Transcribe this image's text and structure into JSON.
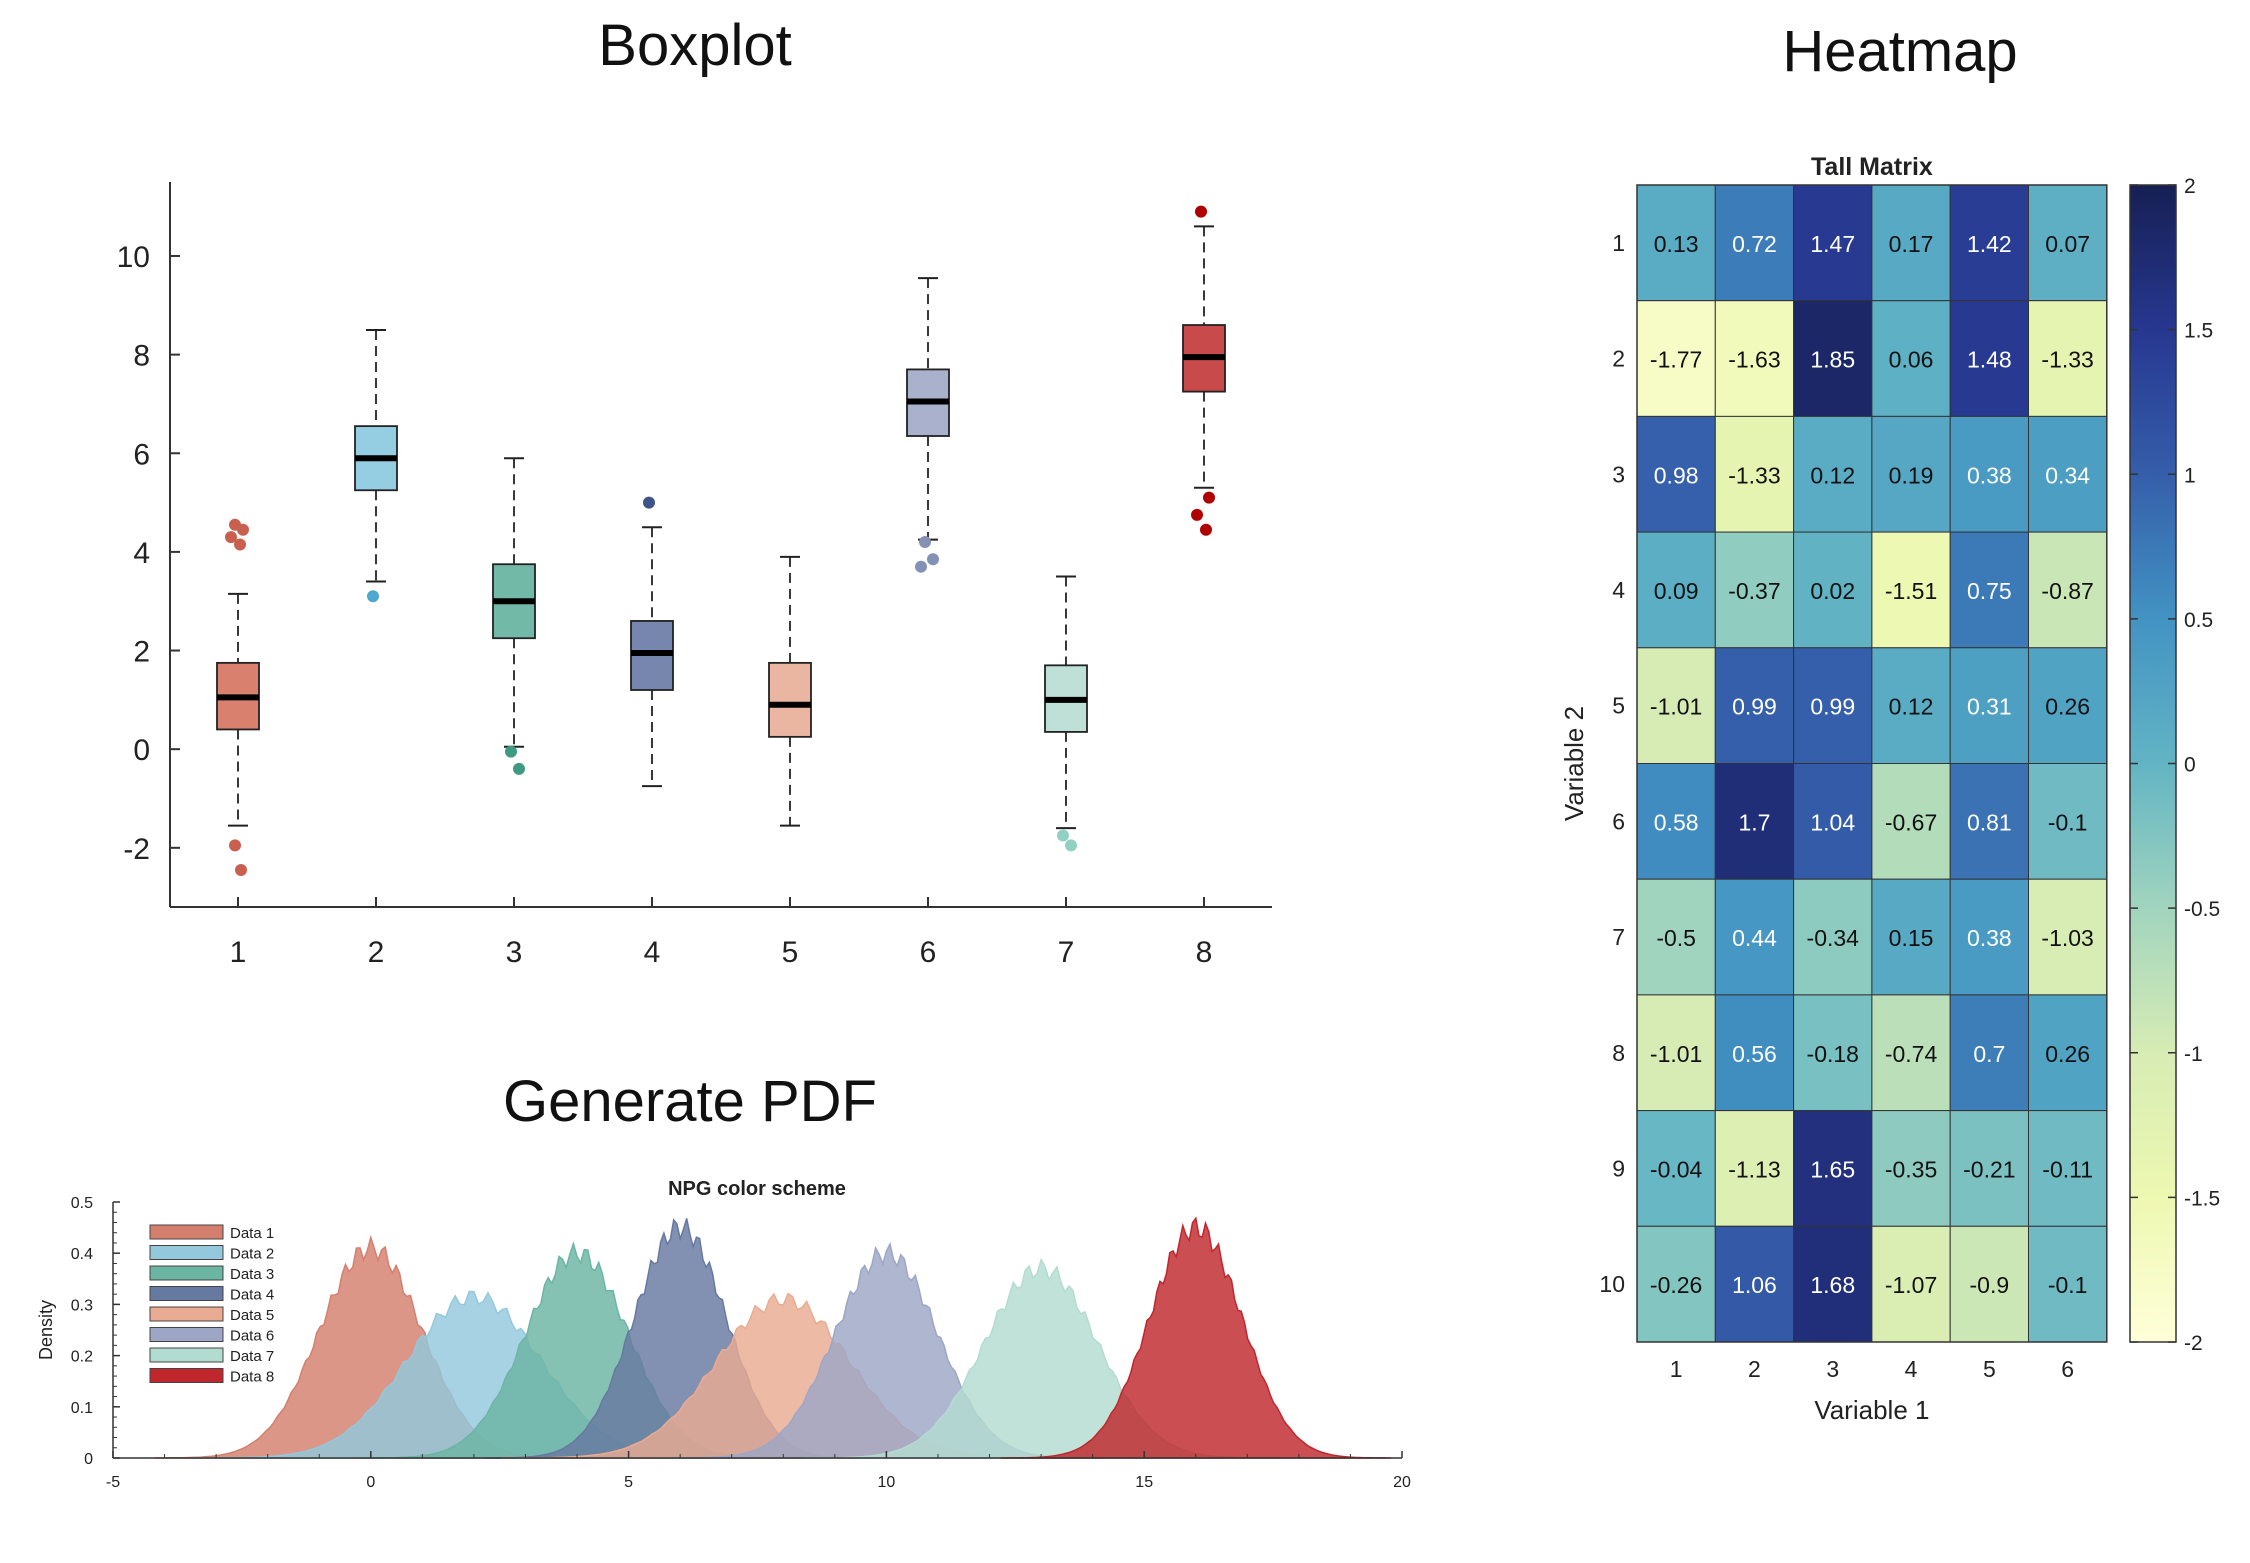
{
  "titles": {
    "boxplot": "Boxplot",
    "heatmap": "Heatmap",
    "pdf": "Generate PDF"
  },
  "chart_data": [
    {
      "type": "boxplot",
      "title": "",
      "xlabel": "",
      "ylabel": "",
      "categories": [
        "1",
        "2",
        "3",
        "4",
        "5",
        "6",
        "7",
        "8"
      ],
      "ylim": [
        -3.2,
        11.5
      ],
      "yticks": [
        -2,
        0,
        2,
        4,
        6,
        8,
        10
      ],
      "boxes": [
        {
          "q1": 0.4,
          "median": 1.05,
          "q3": 1.75,
          "wlow": -1.55,
          "whigh": 3.15,
          "outliers": [
            4.55,
            4.45,
            4.3,
            4.15,
            -1.95,
            -2.45
          ],
          "color": "#c9604f",
          "fill": "#d9806f"
        },
        {
          "q1": 5.25,
          "median": 5.9,
          "q3": 6.55,
          "wlow": 3.4,
          "whigh": 8.5,
          "outliers": [
            3.1
          ],
          "color": "#4da8cf",
          "fill": "#95cde2"
        },
        {
          "q1": 2.25,
          "median": 3.0,
          "q3": 3.75,
          "wlow": 0.05,
          "whigh": 5.9,
          "outliers": [
            -0.05,
            -0.4
          ],
          "color": "#3e9b81",
          "fill": "#72b9a7"
        },
        {
          "q1": 1.2,
          "median": 1.95,
          "q3": 2.6,
          "wlow": -0.75,
          "whigh": 4.5,
          "outliers": [
            5.0
          ],
          "color": "#3c5488",
          "fill": "#7686ae"
        },
        {
          "q1": 0.25,
          "median": 0.9,
          "q3": 1.75,
          "wlow": -1.55,
          "whigh": 3.9,
          "outliers": [],
          "color": "#e0937a",
          "fill": "#eab6a1"
        },
        {
          "q1": 6.35,
          "median": 7.05,
          "q3": 7.7,
          "wlow": 4.25,
          "whigh": 9.55,
          "outliers": [
            4.2,
            3.85,
            3.7
          ],
          "color": "#8491b4",
          "fill": "#a9b1cd"
        },
        {
          "q1": 0.35,
          "median": 1.0,
          "q3": 1.7,
          "wlow": -1.6,
          "whigh": 3.5,
          "outliers": [
            -1.75,
            -1.95
          ],
          "color": "#91d1c2",
          "fill": "#bfe0d7"
        },
        {
          "q1": 7.25,
          "median": 7.95,
          "q3": 8.6,
          "wlow": 5.3,
          "whigh": 10.6,
          "outliers": [
            10.9,
            5.1,
            4.75,
            4.45
          ],
          "color": "#b00000",
          "fill": "#c94a4a"
        }
      ]
    },
    {
      "type": "heatmap",
      "title": "Tall Matrix",
      "xlabel": "Variable 1",
      "ylabel": "Variable 2",
      "x": [
        "1",
        "2",
        "3",
        "4",
        "5",
        "6"
      ],
      "y": [
        "1",
        "2",
        "3",
        "4",
        "5",
        "6",
        "7",
        "8",
        "9",
        "10"
      ],
      "values": [
        [
          0.13,
          0.72,
          1.47,
          0.17,
          1.42,
          0.07
        ],
        [
          -1.77,
          -1.63,
          1.85,
          0.06,
          1.48,
          -1.33
        ],
        [
          0.98,
          -1.33,
          0.12,
          0.19,
          0.38,
          0.34
        ],
        [
          0.09,
          -0.37,
          0.02,
          -1.51,
          0.75,
          -0.87
        ],
        [
          -1.01,
          0.99,
          0.99,
          0.12,
          0.31,
          0.26
        ],
        [
          0.58,
          1.7,
          1.04,
          -0.67,
          0.81,
          -0.1
        ],
        [
          -0.5,
          0.44,
          -0.34,
          0.15,
          0.38,
          -1.03
        ],
        [
          -1.01,
          0.56,
          -0.18,
          -0.74,
          0.7,
          0.26
        ],
        [
          -0.04,
          -1.13,
          1.65,
          -0.35,
          -0.21,
          -0.11
        ],
        [
          -0.26,
          1.06,
          1.68,
          -1.07,
          -0.9,
          -0.1
        ]
      ],
      "color_range": [
        -2,
        2
      ],
      "colorbar_ticks": [
        2,
        1.5,
        1,
        0.5,
        0,
        -0.5,
        -1,
        -1.5,
        -2
      ]
    },
    {
      "type": "area",
      "title": "NPG color scheme",
      "xlabel": "",
      "ylabel": "Density",
      "xlim": [
        -5,
        20
      ],
      "ylim": [
        0,
        0.5
      ],
      "xticks": [
        -5,
        0,
        5,
        10,
        15,
        20
      ],
      "yticks": [
        0,
        0.1,
        0.2,
        0.3,
        0.4,
        0.5
      ],
      "legend_position": "top-left",
      "series": [
        {
          "name": "Data 1",
          "mean": 0.0,
          "sd": 1.0,
          "peak": 0.41,
          "color": "#d47f6e"
        },
        {
          "name": "Data 2",
          "mean": 2.0,
          "sd": 1.3,
          "peak": 0.315,
          "color": "#93c8dd"
        },
        {
          "name": "Data 3",
          "mean": 4.0,
          "sd": 1.0,
          "peak": 0.4,
          "color": "#6bb5a3"
        },
        {
          "name": "Data 4",
          "mean": 6.0,
          "sd": 0.9,
          "peak": 0.45,
          "color": "#6679a0"
        },
        {
          "name": "Data 5",
          "mean": 8.0,
          "sd": 1.3,
          "peak": 0.31,
          "color": "#e9ab92"
        },
        {
          "name": "Data 6",
          "mean": 10.0,
          "sd": 1.0,
          "peak": 0.4,
          "color": "#9ea6c6"
        },
        {
          "name": "Data 7",
          "mean": 13.0,
          "sd": 1.1,
          "peak": 0.37,
          "color": "#b3dcd1"
        },
        {
          "name": "Data 8",
          "mean": 16.0,
          "sd": 0.9,
          "peak": 0.45,
          "color": "#c0272d"
        }
      ]
    }
  ]
}
